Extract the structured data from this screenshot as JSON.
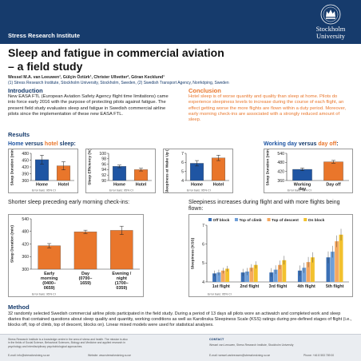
{
  "header": {
    "institute": "Stress Research Institute",
    "logo_line1": "Stockholm",
    "logo_line2": "University",
    "accent": "#163b6c"
  },
  "title": {
    "line1": "Sleep and fatigue in commercial aviation",
    "line2": "– a field study"
  },
  "authors": "Wessel M.A. van Leeuwen¹, Gülçin Öztürk¹, Christer Ullvetter², Göran Kecklund¹",
  "affiliations": "(1) Stress Research Institute, Stockholm University, Stockholm, Sweden, (2) Swedish Transport Agency, Norrköping, Sweden",
  "introduction": {
    "heading": "Introduction",
    "text": "New EASA FTL (European Aviation Safety Agency flight time limitations) came into force early 2016 with the purpose of protecting pilots against fatigue. The present field study evaluates sleep and fatigue in Swedish commercial airline pilots since the implementation of these new EASA FTL."
  },
  "conclusion": {
    "heading": "Conclusion",
    "text": "Hotel sleep is of worse quantity and quality than sleep at home. Pilots do experience sleepiness levels to increase during the course of each flight, an effect getting worse the more flights are flown within a duty period. Moreover, early morning check-ins are associated with a strongly reduced amount of sleep.",
    "color": "#e9762b"
  },
  "results": {
    "heading": "Results",
    "home_vs_hotel": {
      "home": "Home",
      "versus": " versus ",
      "hotel": "hotel",
      "suffix": " sleep:"
    },
    "working_vs_off": {
      "work": "Working day",
      "versus": " versus ",
      "off": "day off",
      "suffix": ":"
    },
    "shorter_sleep_title": "Shorter sleep preceding early morning check-ins:",
    "sleepiness_title": "Sleepiness increases during flight and with more flights being flown:"
  },
  "colors": {
    "home": "#1f55a3",
    "hotel": "#e9762b",
    "block_off": "#3a6fb5",
    "climb": "#6f9fd8",
    "descent": "#f4a860",
    "on_block": "#f2c12e"
  },
  "chart_data": [
    {
      "type": "bar",
      "categories": [
        "Home",
        "Hotel"
      ],
      "values": [
        452,
        425
      ],
      "errors": [
        20,
        18
      ],
      "ylabel": "Sleep Duration (min)",
      "ylim": [
        360,
        480
      ],
      "yticks": [
        360,
        390,
        420,
        450,
        480
      ],
      "footnote": "Error bars: 95% CI"
    },
    {
      "type": "bar",
      "categories": [
        "Home",
        "Hotel"
      ],
      "values": [
        95.2,
        94.0
      ],
      "errors": [
        0.5,
        0.5
      ],
      "ylabel": "Sleep Efficiency (%)",
      "ylim": [
        90,
        100
      ],
      "yticks": [
        90,
        92,
        94,
        96,
        98,
        100
      ],
      "footnote": "Error bars: 95% CI"
    },
    {
      "type": "bar",
      "categories": [
        "Home",
        "Hotel"
      ],
      "values": [
        5.9,
        6.5
      ],
      "errors": [
        0.3,
        0.3
      ],
      "ylabel": "Sleepiness at Wake Up (KSS)",
      "ylim": [
        4,
        7
      ],
      "yticks": [
        4,
        5,
        6,
        7
      ],
      "footnote": "Error bars: 95% CI"
    },
    {
      "type": "bar",
      "categories": [
        "Working day",
        "Day off"
      ],
      "values": [
        434,
        484
      ],
      "errors": [
        9,
        9
      ],
      "ylabel": "Sleep Duration (min)",
      "ylim": [
        360,
        540
      ],
      "yticks": [
        360,
        420,
        480,
        540
      ],
      "footnote": "Error bars: 95% CI"
    },
    {
      "type": "bar",
      "categories": [
        "Early morning (0400–0659)",
        "Day (0700–1659)",
        "Evening / night (1700–0359)"
      ],
      "category_lines": [
        [
          "Early",
          "morning",
          "(0400–",
          "0659)"
        ],
        [
          "Day",
          "(0700–",
          "1659)"
        ],
        [
          "Evening /",
          "night",
          "(1700–",
          "0359)"
        ]
      ],
      "values": [
        412,
        478,
        485
      ],
      "errors": [
        10,
        8,
        20
      ],
      "ylabel": "Sleep Duration (min)",
      "ylim": [
        300,
        540
      ],
      "yticks": [
        300,
        360,
        420,
        480,
        540
      ],
      "footnote": "Error bars: 95% CI"
    },
    {
      "type": "bar",
      "categories": [
        "1st flight",
        "2nd flight",
        "3rd flight",
        "4th flight",
        "5th flight"
      ],
      "series": [
        {
          "name": "Off block",
          "values": [
            4.45,
            4.5,
            4.5,
            4.6,
            5.3
          ]
        },
        {
          "name": "Top of climb",
          "values": [
            4.5,
            4.55,
            4.65,
            4.75,
            5.6
          ]
        },
        {
          "name": "Top of descent",
          "values": [
            4.6,
            4.75,
            4.9,
            5.05,
            6.15
          ]
        },
        {
          "name": "On block",
          "values": [
            4.7,
            4.9,
            5.15,
            5.3,
            6.5
          ]
        }
      ],
      "ylabel": "Sleepiness (KSS)",
      "ylim": [
        4,
        7
      ],
      "yticks": [
        4,
        5,
        6,
        7
      ],
      "footnote": "Error bars: 95% CI"
    }
  ],
  "method": {
    "heading": "Method",
    "text": "32 randomly selected Swedish commercial airline pilots participated in the field study. During a period of 13 days all pilots wore an actiwatch and completed work and sleep diaries that contained questions about sleep quality and quantity, working conditions as well as Karolinska Sleepiness Scale (KSS) ratings during pre-defined stages of flight (i.e., blocks off, top of climb, top of descent, blocks on). Linear mixed models were used for statistical analyses."
  },
  "footer": {
    "col1": "Stress Research Institute is a knowledge centre in the area of stress and health. The mission is also in the fields of Social Science, Behavioral Sciences, Biology and Medicine and applied research in psychology and interdisciplinary psychobiological approaches.",
    "email1": "E-mail: info@stressforskning.su.se",
    "web": "Website: www.stressforskning.su.se",
    "contact_head": "CONTACT",
    "contact": "Wessel van Leeuwen, Stress Research Institute, Stockholm University",
    "email2": "E-mail: wessel.vanleeuwen@stressforskning.su.se",
    "phone": "Phone: +46 8 553 789 00"
  }
}
